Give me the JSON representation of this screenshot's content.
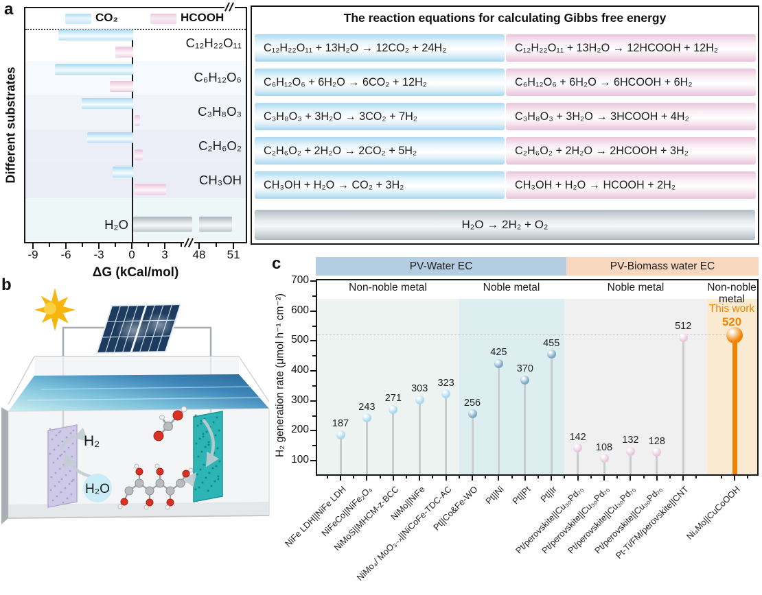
{
  "figure": {
    "panel_a": "a",
    "panel_b": "b",
    "panel_c": "c"
  },
  "panel_b": {
    "h2": "H₂",
    "h2o": "H₂O"
  },
  "equation_table": {
    "title": "The reaction equations for calculating Gibbs free energy",
    "rows": [
      {
        "co2": "C₁₂H₂₂O₁₁ + 13H₂O → 12CO₂ + 24H₂",
        "hcooh": "C₁₂H₂₂O₁₁ + 13H₂O → 12HCOOH + 12H₂"
      },
      {
        "co2": "C₆H₁₂O₆ + 6H₂O → 6CO₂ + 12H₂",
        "hcooh": "C₆H₁₂O₆ + 6H₂O → 6HCOOH + 6H₂"
      },
      {
        "co2": "C₃H₈O₃ + 3H₂O → 3CO₂ + 7H₂",
        "hcooh": "C₃H₈O₃ + 3H₂O → 3HCOOH + 4H₂"
      },
      {
        "co2": "C₂H₆O₂ + 2H₂O → 2CO₂ + 5H₂",
        "hcooh": "C₂H₆O₂ + 2H₂O → 2HCOOH + 3H₂"
      },
      {
        "co2": "CH₃OH + H₂O → CO₂ + 3H₂",
        "hcooh": "CH₃OH + H₂O → HCOOH + 2H₂"
      }
    ],
    "water_row": "H₂O → 2H₂ + O₂"
  },
  "chart_data": [
    {
      "type": "bar",
      "orientation": "horizontal",
      "xlabel": "ΔG (kCal/mol)",
      "ylabel": "Different substrates",
      "x_ticks": [
        -9,
        -6,
        -3,
        0,
        3,
        48,
        51
      ],
      "axis_break_between": [
        3,
        48
      ],
      "categories": [
        "C₁₂H₂₂O₁₁",
        "C₆H₁₂O₆",
        "C₃H₈O₃",
        "C₂H₆O₂",
        "CH₃OH",
        "H₂O"
      ],
      "series": [
        {
          "name": "CO₂",
          "color": "#bde2f3",
          "values": [
            -6.8,
            -7.1,
            -4.7,
            -4.2,
            -1.9,
            null
          ]
        },
        {
          "name": "HCOOH",
          "color": "#edccdf",
          "values": [
            -1.6,
            -2.1,
            0.6,
            0.9,
            3.0,
            null
          ]
        }
      ],
      "water_splitting_bar": {
        "category": "H₂O",
        "value": 50.5,
        "color": "#c3cdd2"
      }
    },
    {
      "type": "lollipop",
      "ylabel": "H₂ generation rate (μmol h⁻¹ cm⁻²)",
      "ylim": [
        50,
        700
      ],
      "y_ticks": [
        100,
        200,
        300,
        400,
        500,
        600,
        700
      ],
      "reference_line": 520,
      "bands": [
        {
          "label": "PV-Water EC",
          "color": "#b5cde2"
        },
        {
          "label": "PV-Biomass water EC",
          "color": "#f7d8bf"
        }
      ],
      "groups": [
        {
          "label": "Non-noble metal",
          "band": 0,
          "bg": "#ecf3f0",
          "marker": "#a8d8ee",
          "items": [
            {
              "label": "NiFe LDH||NiFe LDH",
              "value": 187
            },
            {
              "label": "NiFeCo||NiFe₂O₄",
              "value": 243
            },
            {
              "label": "NiMoS||MHCM-z-BCC",
              "value": 271
            },
            {
              "label": "NiMo||NiFe",
              "value": 303
            },
            {
              "label": "NiMo₄/ MoO₃₋ₓ||NiCoFe-TDC-AC",
              "value": 323
            }
          ]
        },
        {
          "label": "Noble metal",
          "band": 0,
          "bg": "#ddeef1",
          "marker": "#7aa9c6",
          "items": [
            {
              "label": "Pt||Co&Fe-WO",
              "value": 256
            },
            {
              "label": "Pt||Ni",
              "value": 425
            },
            {
              "label": "Pt||Pt",
              "value": 370
            },
            {
              "label": "Pt||Ir",
              "value": 455
            }
          ]
        },
        {
          "label": "Noble metal",
          "band": 1,
          "bg": "#f0f0f1",
          "marker": "#e6c8dc",
          "items": [
            {
              "label": "Pt/perovskite||Cu₃₀Pd₇₀",
              "value": 142
            },
            {
              "label": "Pt/perovskite||Cu₃₀Pd₇₀",
              "value": 108
            },
            {
              "label": "Pt/perovskite||Cu₃₀Pd₇₀",
              "value": 132
            },
            {
              "label": "Pt/perovskite||Cu₃₀Pd₇₀",
              "value": 128
            },
            {
              "label": "Pt-Ti/FM/perovskite||CNT",
              "value": 512
            }
          ]
        },
        {
          "label": "Non-noble metal",
          "band": 1,
          "bg": "#fbead2",
          "marker": "#f08300",
          "items": [
            {
              "label": "Ni₄Mo||CuCoOOH",
              "value": 520
            }
          ],
          "highlight": {
            "text": "This work",
            "value": 520,
            "color": "#f08300"
          }
        }
      ]
    }
  ]
}
